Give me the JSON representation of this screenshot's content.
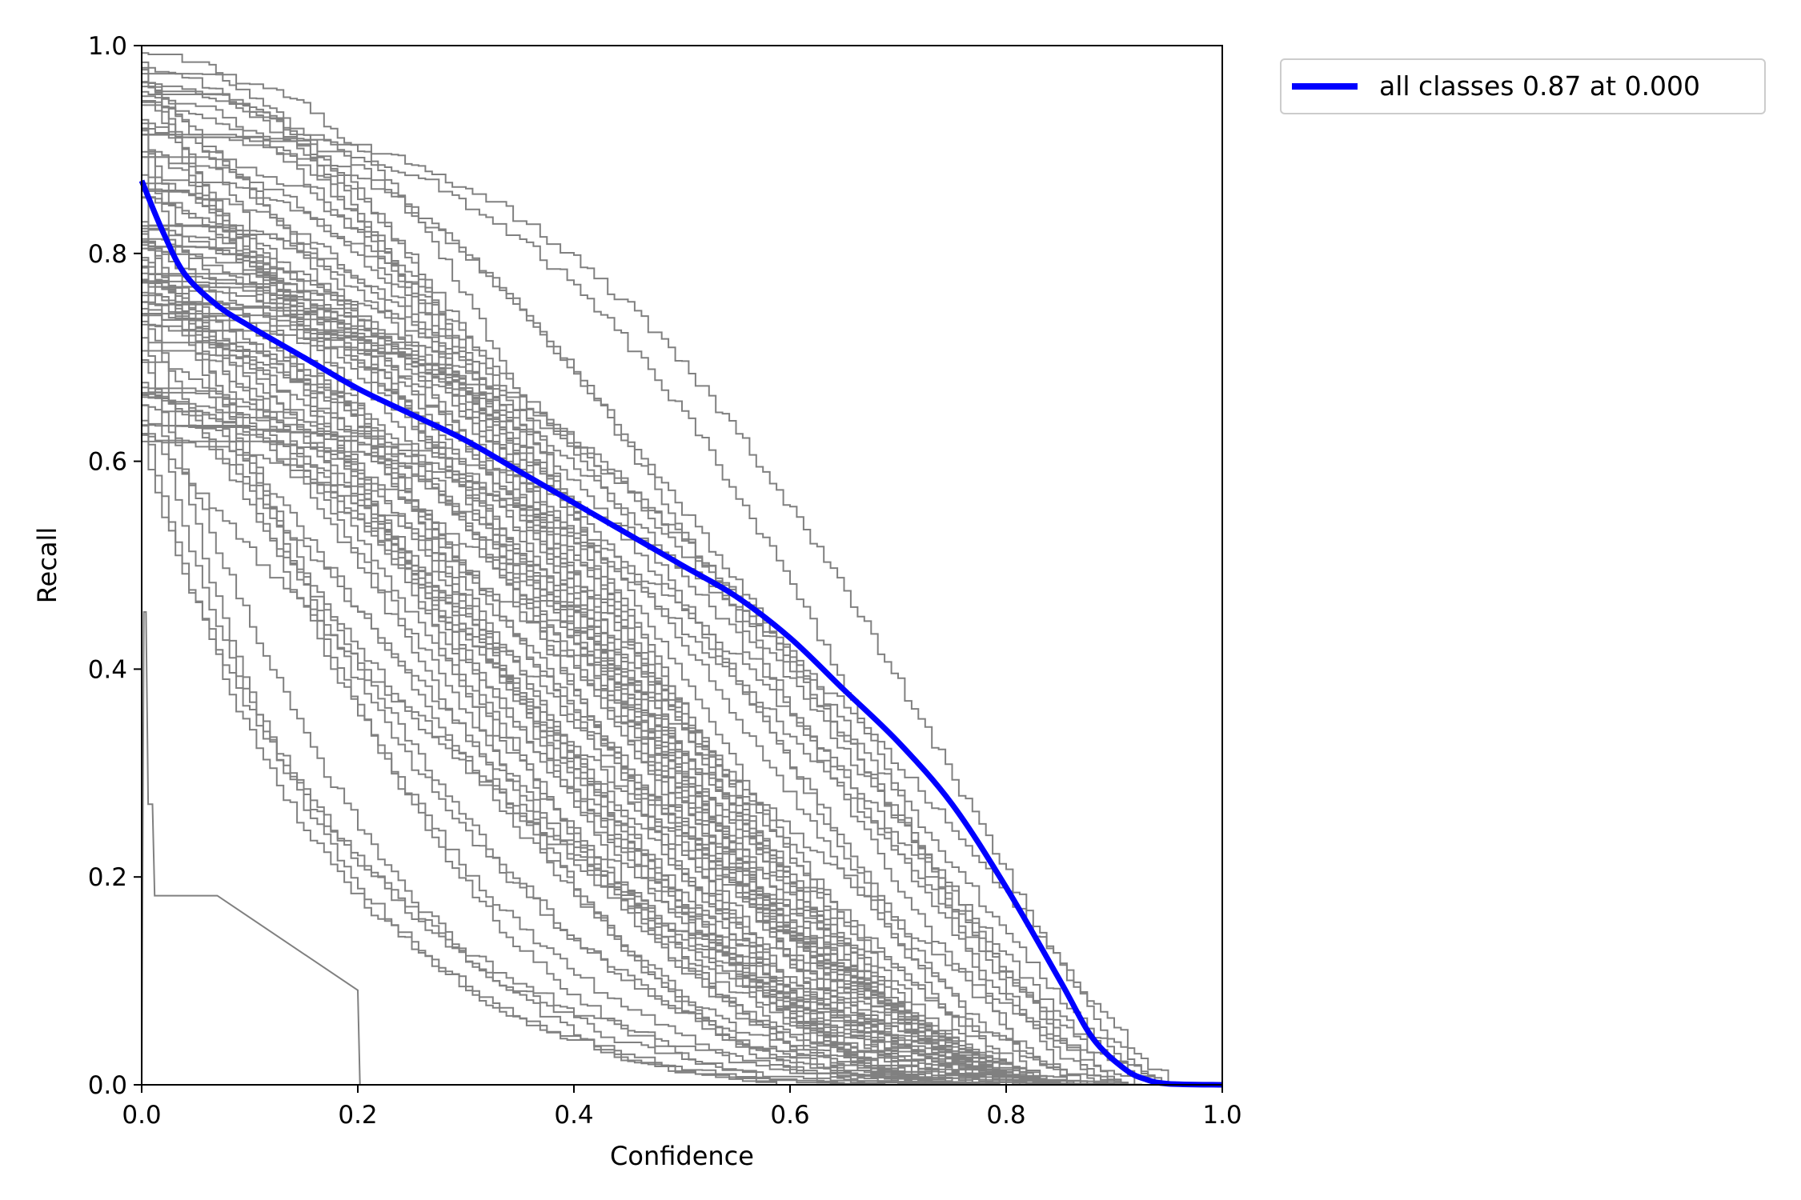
{
  "chart_data": {
    "type": "line",
    "title": "",
    "xlabel": "Confidence",
    "ylabel": "Recall",
    "xlim": [
      0.0,
      1.0
    ],
    "ylim": [
      0.0,
      1.0
    ],
    "xticks": [
      "0.0",
      "0.2",
      "0.4",
      "0.6",
      "0.8",
      "1.0"
    ],
    "yticks": [
      "0.0",
      "0.2",
      "0.4",
      "0.6",
      "0.8",
      "1.0"
    ],
    "grid": false,
    "legend_position": "outside-top-right",
    "colors": {
      "per_class": "#808080",
      "all_classes": "#0000ff"
    },
    "per_class_count": 80,
    "per_class_style": "grey thin lines, one per class, each decreasing from recall near 0.7-1.0 at confidence 0 to 0 near confidence 0.8-0.95",
    "special_class": {
      "x": [
        0.0,
        0.002,
        0.004,
        0.006,
        0.01,
        0.012,
        0.07,
        0.2,
        0.202,
        0.205
      ],
      "y": [
        0.0,
        0.455,
        0.455,
        0.27,
        0.27,
        0.182,
        0.182,
        0.091,
        0.0,
        0.0
      ]
    },
    "series": [
      {
        "name": "all classes 0.87 at 0.000",
        "x": [
          0.0,
          0.02,
          0.04,
          0.07,
          0.1,
          0.15,
          0.2,
          0.25,
          0.3,
          0.35,
          0.4,
          0.45,
          0.5,
          0.55,
          0.6,
          0.65,
          0.7,
          0.75,
          0.8,
          0.85,
          0.88,
          0.91,
          0.93,
          0.95,
          1.0
        ],
        "y": [
          0.87,
          0.82,
          0.78,
          0.75,
          0.73,
          0.7,
          0.67,
          0.645,
          0.62,
          0.59,
          0.56,
          0.53,
          0.5,
          0.47,
          0.43,
          0.38,
          0.33,
          0.27,
          0.19,
          0.1,
          0.045,
          0.015,
          0.005,
          0.001,
          0.0
        ]
      }
    ]
  }
}
